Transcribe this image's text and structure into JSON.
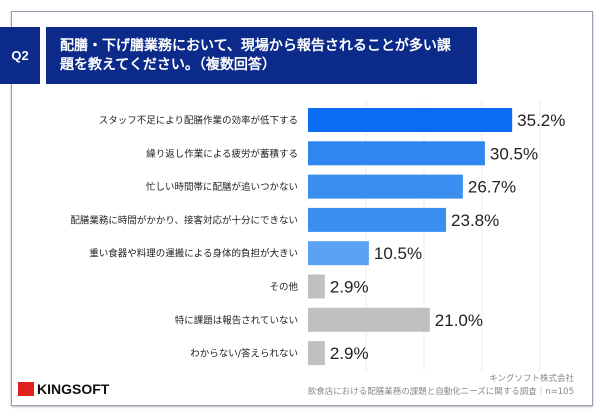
{
  "question": {
    "badge": "Q2",
    "title": "配膳・下げ膳業務において、現場から報告されることが多い課題を教えてください。（複数回答）"
  },
  "chart_data": {
    "type": "bar",
    "orientation": "horizontal",
    "title": "配膳・下げ膳業務において、現場から報告されることが多い課題を教えてください。（複数回答）",
    "categories": [
      "スタッフ不足により配膳作業の効率が低下する",
      "繰り返し作業による疲労が蓄積する",
      "忙しい時間帯に配膳が追いつかない",
      "配膳業務に時間がかかり、接客対応が十分にできない",
      "重い食器や料理の運搬による身体的負担が大きい",
      "その他",
      "特に課題は報告されていない",
      "わからない/答えられない"
    ],
    "values": [
      35.2,
      30.5,
      26.7,
      23.8,
      10.5,
      2.9,
      21.0,
      2.9
    ],
    "value_labels": [
      "35.2%",
      "30.5%",
      "26.7%",
      "23.8%",
      "10.5%",
      "2.9%",
      "21.0%",
      "2.9%"
    ],
    "colors": [
      "#0a6cf0",
      "#2f86f0",
      "#3a8ef0",
      "#3a8ef0",
      "#5aa2f2",
      "#c0c0c0",
      "#c0c0c0",
      "#c0c0c0"
    ],
    "xlim": [
      0,
      40
    ],
    "grid": true,
    "unit": "%"
  },
  "footer": {
    "brand": "KINGSOFT",
    "company": "キングソフト株式会社",
    "survey": "飲食店における配膳業務の課題と自動化ニーズに関する調査｜n=105"
  }
}
